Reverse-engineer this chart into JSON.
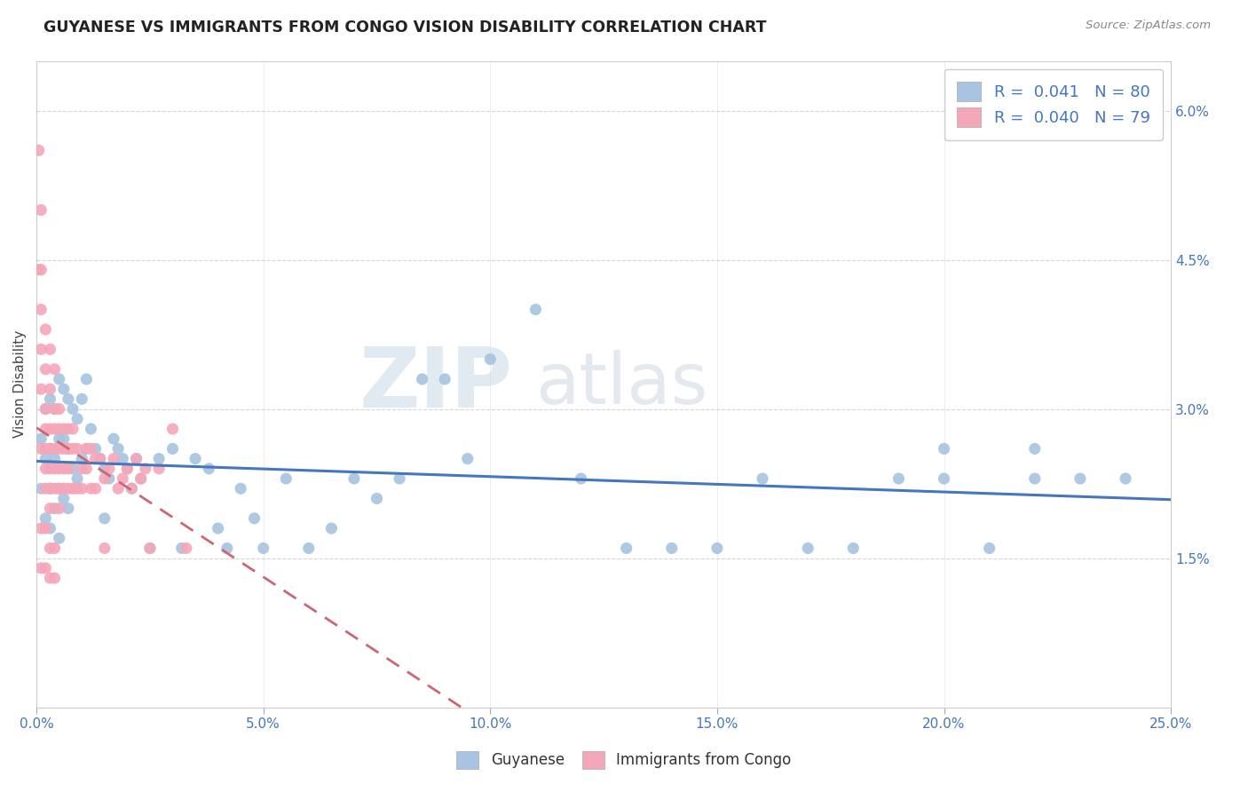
{
  "title": "GUYANESE VS IMMIGRANTS FROM CONGO VISION DISABILITY CORRELATION CHART",
  "source": "Source: ZipAtlas.com",
  "ylabel": "Vision Disability",
  "xlim": [
    0.0,
    0.25
  ],
  "ylim": [
    0.0,
    0.065
  ],
  "xticks": [
    0.0,
    0.05,
    0.1,
    0.15,
    0.2,
    0.25
  ],
  "yticks": [
    0.0,
    0.015,
    0.03,
    0.045,
    0.06
  ],
  "series1_label": "Guyanese",
  "series1_color": "#a8c4e0",
  "series1_R": 0.041,
  "series1_N": 80,
  "series2_label": "Immigrants from Congo",
  "series2_color": "#f4a7b9",
  "series2_R": 0.04,
  "series2_N": 79,
  "trend1_color": "#4477bb",
  "trend2_color": "#cc6677",
  "watermark_zip": "ZIP",
  "watermark_atlas": "atlas",
  "background_color": "#ffffff",
  "series1_x": [
    0.001,
    0.001,
    0.002,
    0.002,
    0.002,
    0.003,
    0.003,
    0.003,
    0.003,
    0.004,
    0.004,
    0.004,
    0.005,
    0.005,
    0.005,
    0.005,
    0.006,
    0.006,
    0.006,
    0.007,
    0.007,
    0.007,
    0.008,
    0.008,
    0.009,
    0.009,
    0.01,
    0.01,
    0.011,
    0.011,
    0.012,
    0.013,
    0.014,
    0.015,
    0.015,
    0.016,
    0.017,
    0.018,
    0.019,
    0.02,
    0.021,
    0.022,
    0.023,
    0.025,
    0.027,
    0.03,
    0.032,
    0.035,
    0.038,
    0.04,
    0.042,
    0.045,
    0.048,
    0.05,
    0.055,
    0.06,
    0.065,
    0.07,
    0.075,
    0.08,
    0.085,
    0.09,
    0.095,
    0.1,
    0.11,
    0.12,
    0.13,
    0.14,
    0.15,
    0.16,
    0.17,
    0.18,
    0.19,
    0.2,
    0.21,
    0.22,
    0.23,
    0.24,
    0.2,
    0.22
  ],
  "series1_y": [
    0.027,
    0.022,
    0.03,
    0.025,
    0.019,
    0.031,
    0.026,
    0.022,
    0.018,
    0.03,
    0.025,
    0.02,
    0.033,
    0.027,
    0.022,
    0.017,
    0.032,
    0.027,
    0.021,
    0.031,
    0.026,
    0.02,
    0.03,
    0.024,
    0.029,
    0.023,
    0.031,
    0.025,
    0.033,
    0.026,
    0.028,
    0.026,
    0.025,
    0.024,
    0.019,
    0.023,
    0.027,
    0.026,
    0.025,
    0.024,
    0.022,
    0.025,
    0.023,
    0.016,
    0.025,
    0.026,
    0.016,
    0.025,
    0.024,
    0.018,
    0.016,
    0.022,
    0.019,
    0.016,
    0.023,
    0.016,
    0.018,
    0.023,
    0.021,
    0.023,
    0.033,
    0.033,
    0.025,
    0.035,
    0.04,
    0.023,
    0.016,
    0.016,
    0.016,
    0.023,
    0.016,
    0.016,
    0.023,
    0.023,
    0.016,
    0.023,
    0.023,
    0.023,
    0.026,
    0.026
  ],
  "series2_x": [
    0.0005,
    0.0005,
    0.001,
    0.001,
    0.001,
    0.001,
    0.001,
    0.001,
    0.002,
    0.002,
    0.002,
    0.002,
    0.002,
    0.002,
    0.002,
    0.003,
    0.003,
    0.003,
    0.003,
    0.003,
    0.003,
    0.003,
    0.004,
    0.004,
    0.004,
    0.004,
    0.004,
    0.004,
    0.005,
    0.005,
    0.005,
    0.005,
    0.005,
    0.005,
    0.006,
    0.006,
    0.006,
    0.006,
    0.007,
    0.007,
    0.007,
    0.007,
    0.008,
    0.008,
    0.008,
    0.009,
    0.009,
    0.01,
    0.01,
    0.011,
    0.011,
    0.012,
    0.012,
    0.013,
    0.013,
    0.014,
    0.015,
    0.016,
    0.017,
    0.018,
    0.019,
    0.02,
    0.021,
    0.022,
    0.023,
    0.024,
    0.025,
    0.027,
    0.03,
    0.033,
    0.001,
    0.001,
    0.002,
    0.002,
    0.003,
    0.003,
    0.004,
    0.004,
    0.015
  ],
  "series2_y": [
    0.056,
    0.044,
    0.05,
    0.044,
    0.04,
    0.036,
    0.032,
    0.026,
    0.038,
    0.034,
    0.03,
    0.028,
    0.026,
    0.024,
    0.022,
    0.036,
    0.032,
    0.028,
    0.026,
    0.024,
    0.022,
    0.02,
    0.034,
    0.03,
    0.028,
    0.026,
    0.024,
    0.022,
    0.03,
    0.028,
    0.026,
    0.024,
    0.022,
    0.02,
    0.028,
    0.026,
    0.024,
    0.022,
    0.028,
    0.026,
    0.024,
    0.022,
    0.028,
    0.026,
    0.022,
    0.026,
    0.022,
    0.024,
    0.022,
    0.026,
    0.024,
    0.026,
    0.022,
    0.025,
    0.022,
    0.025,
    0.023,
    0.024,
    0.025,
    0.022,
    0.023,
    0.024,
    0.022,
    0.025,
    0.023,
    0.024,
    0.016,
    0.024,
    0.028,
    0.016,
    0.018,
    0.014,
    0.018,
    0.014,
    0.016,
    0.013,
    0.016,
    0.013,
    0.016
  ]
}
